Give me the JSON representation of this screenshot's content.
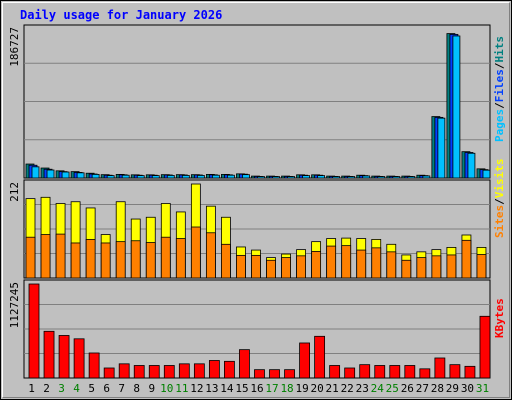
{
  "chart_data": {
    "type": "bar",
    "title": "Daily usage for January 2026",
    "categories": [
      "1",
      "2",
      "3",
      "4",
      "5",
      "6",
      "7",
      "8",
      "9",
      "10",
      "11",
      "12",
      "13",
      "14",
      "15",
      "16",
      "17",
      "18",
      "19",
      "20",
      "21",
      "22",
      "23",
      "24",
      "25",
      "26",
      "27",
      "28",
      "29",
      "30",
      "31"
    ],
    "weekend_days": [
      "3",
      "4",
      "10",
      "11",
      "17",
      "18",
      "24",
      "25",
      "31"
    ],
    "panels": [
      {
        "id": "hits-files-pages",
        "ymax": 186727,
        "max_label": "186727",
        "labels": [
          "Pages",
          "/",
          "Files",
          "/",
          "Hits"
        ],
        "label_colors": [
          "#00c0ff",
          "#000000",
          "#0040ff",
          "#000000",
          "#008080"
        ],
        "series": [
          {
            "name": "Hits",
            "color": "#008080",
            "values": [
              17500,
              12500,
              9000,
              8000,
              6000,
              4200,
              4500,
              4000,
              4000,
              4200,
              4200,
              4200,
              4500,
              4500,
              5200,
              2400,
              2400,
              2400,
              4000,
              4000,
              2400,
              2400,
              3500,
              2400,
              2400,
              2400,
              3500,
              77000,
              181000,
              33000,
              11500
            ]
          },
          {
            "name": "Files",
            "color": "#0040ff",
            "values": [
              16000,
              11000,
              8000,
              7000,
              5000,
              3500,
              4000,
              3500,
              3500,
              3800,
              3800,
              3800,
              4000,
              4000,
              4800,
              2000,
              2000,
              2000,
              3500,
              3500,
              2000,
              2000,
              3000,
              2000,
              2000,
              2000,
              3000,
              76000,
              180000,
              32000,
              10500
            ]
          },
          {
            "name": "Pages",
            "color": "#00c0ff",
            "values": [
              14000,
              10000,
              7500,
              6500,
              4500,
              3000,
              3500,
              3000,
              3000,
              3200,
              3200,
              3200,
              3500,
              3500,
              4200,
              1800,
              1800,
              1800,
              3000,
              3000,
              1800,
              1800,
              2600,
              1800,
              1800,
              1800,
              2600,
              75000,
              178000,
              31000,
              9800
            ]
          }
        ]
      },
      {
        "id": "visits-sites",
        "ymax": 212,
        "max_label": "212",
        "labels": [
          "Sites",
          "/",
          "Visits"
        ],
        "label_colors": [
          "#ff8000",
          "#000000",
          "#ffff00"
        ],
        "series": [
          {
            "name": "Visits",
            "color": "#ffff00",
            "values": [
              179,
              182,
              168,
              172,
              158,
              98,
              172,
              133,
              137,
              168,
              149,
              212,
              162,
              137,
              70,
              63,
              46,
              54,
              64,
              82,
              89,
              90,
              89,
              87,
              76,
              52,
              59,
              64,
              69,
              97,
              69
            ]
          },
          {
            "name": "Sites",
            "color": "#ff8000",
            "values": [
              92,
              98,
              99,
              79,
              87,
              79,
              82,
              84,
              80,
              92,
              89,
              115,
              102,
              76,
              51,
              51,
              40,
              46,
              50,
              60,
              72,
              73,
              63,
              68,
              59,
              40,
              46,
              50,
              52,
              85,
              53
            ]
          }
        ]
      },
      {
        "id": "kbytes",
        "ymax": 1127245,
        "max_label": "1127245",
        "labels": [
          "KBytes"
        ],
        "label_colors": [
          "#ff0000"
        ],
        "series": [
          {
            "name": "KBytes",
            "color": "#ff0000",
            "values": [
              1127245,
              560000,
              510000,
              470000,
              300000,
              120000,
              170000,
              150000,
              150000,
              150000,
              170000,
              170000,
              210000,
              200000,
              340000,
              100000,
              100000,
              100000,
              420000,
              500000,
              150000,
              120000,
              160000,
              150000,
              150000,
              150000,
              110000,
              240000,
              160000,
              140000,
              740000
            ]
          }
        ]
      }
    ]
  }
}
